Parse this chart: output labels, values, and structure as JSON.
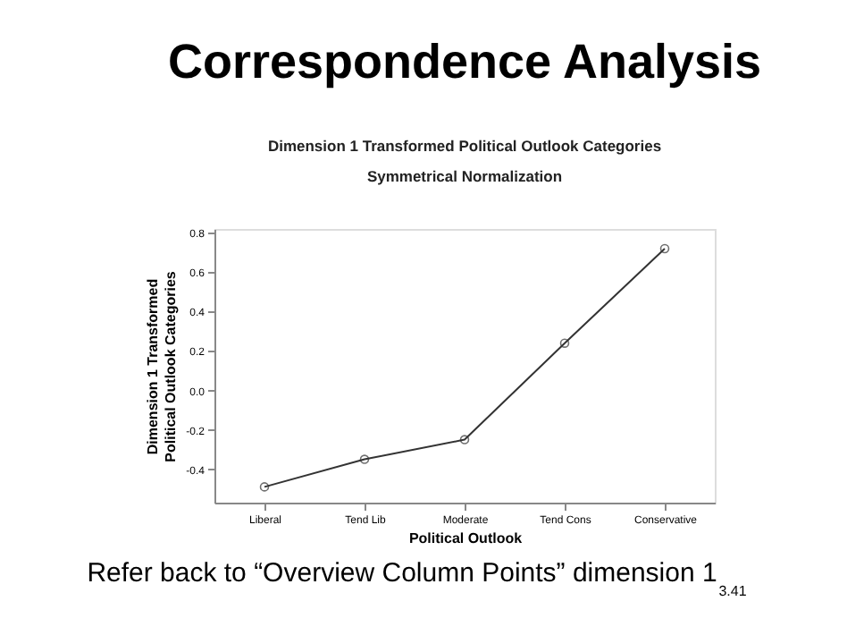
{
  "chart_data": {
    "type": "line",
    "title": "Correspondence Analysis",
    "subtitle": "Dimension 1 Transformed Political Outlook Categories",
    "xlabel": "Political Outlook",
    "ylabel": "Dimension 1 Transformed Political Outlook Categories",
    "categories": [
      "Liberal",
      "Tend Lib",
      "Moderate",
      "Tend Cons",
      "Conservative"
    ],
    "series": [
      {
        "color": "#333333",
        "values": [
          -0.49,
          -0.35,
          -0.25,
          0.24,
          0.72
        ]
      }
    ],
    "ylim": [
      -0.57,
      0.82
    ],
    "yticks": [
      {
        "value": -0.4,
        "label": "-0.4"
      },
      {
        "value": -0.2,
        "label": "-0.2"
      },
      {
        "value": 0.0,
        "label": "0.0"
      },
      {
        "value": 0.2,
        "label": "0.2"
      },
      {
        "value": 0.4,
        "label": "0.4"
      },
      {
        "value": 0.6,
        "label": "0.6"
      },
      {
        "value": 0.8,
        "label": "0.8"
      }
    ],
    "marker": "circle",
    "line_style": "solid",
    "grid": false,
    "annotations": [
      "Symmetrical Normalization",
      "Refer back to “Overview Column Points” dimension 1",
      "3.41"
    ]
  }
}
